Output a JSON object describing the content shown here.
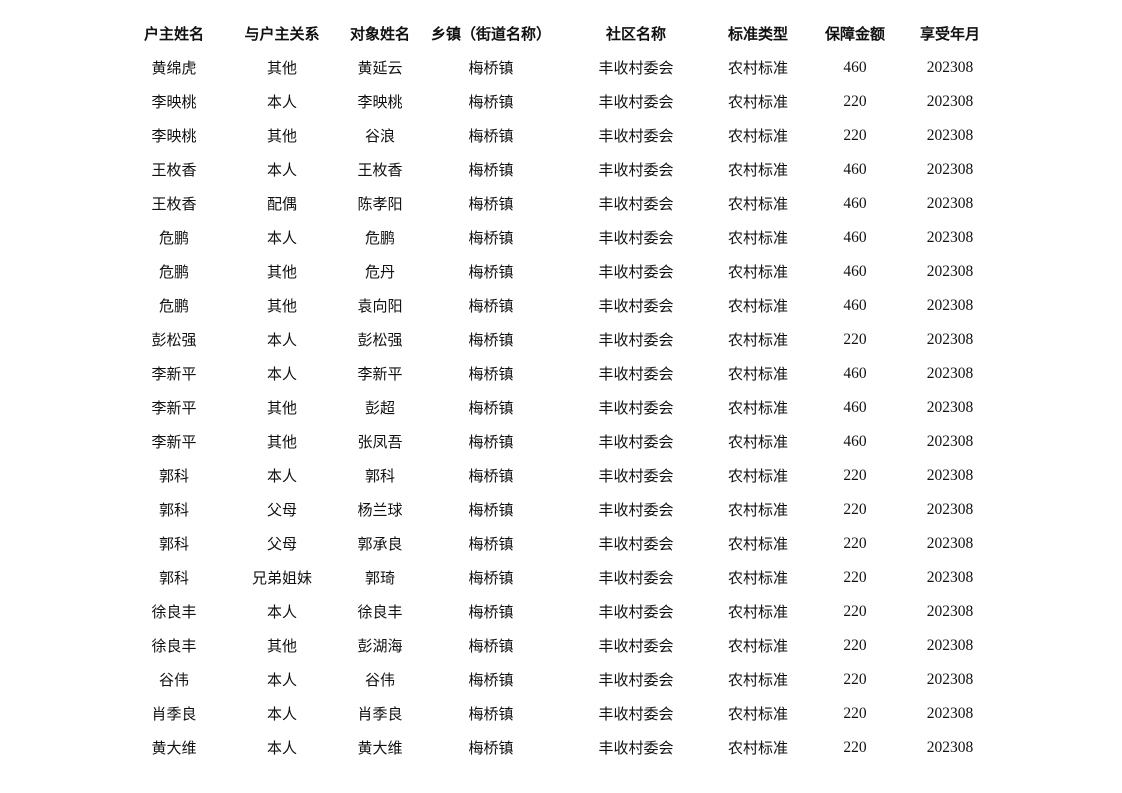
{
  "table": {
    "headers": [
      "户主姓名",
      "与户主关系",
      "对象姓名",
      "乡镇（街道名称）",
      "社区名称",
      "标准类型",
      "保障金额",
      "享受年月"
    ],
    "rows": [
      [
        "黄绵虎",
        "其他",
        "黄延云",
        "梅桥镇",
        "丰收村委会",
        "农村标准",
        "460",
        "202308"
      ],
      [
        "李映桃",
        "本人",
        "李映桃",
        "梅桥镇",
        "丰收村委会",
        "农村标准",
        "220",
        "202308"
      ],
      [
        "李映桃",
        "其他",
        "谷浪",
        "梅桥镇",
        "丰收村委会",
        "农村标准",
        "220",
        "202308"
      ],
      [
        "王枚香",
        "本人",
        "王枚香",
        "梅桥镇",
        "丰收村委会",
        "农村标准",
        "460",
        "202308"
      ],
      [
        "王枚香",
        "配偶",
        "陈孝阳",
        "梅桥镇",
        "丰收村委会",
        "农村标准",
        "460",
        "202308"
      ],
      [
        "危鹏",
        "本人",
        "危鹏",
        "梅桥镇",
        "丰收村委会",
        "农村标准",
        "460",
        "202308"
      ],
      [
        "危鹏",
        "其他",
        "危丹",
        "梅桥镇",
        "丰收村委会",
        "农村标准",
        "460",
        "202308"
      ],
      [
        "危鹏",
        "其他",
        "袁向阳",
        "梅桥镇",
        "丰收村委会",
        "农村标准",
        "460",
        "202308"
      ],
      [
        "彭松强",
        "本人",
        "彭松强",
        "梅桥镇",
        "丰收村委会",
        "农村标准",
        "220",
        "202308"
      ],
      [
        "李新平",
        "本人",
        "李新平",
        "梅桥镇",
        "丰收村委会",
        "农村标准",
        "460",
        "202308"
      ],
      [
        "李新平",
        "其他",
        "彭超",
        "梅桥镇",
        "丰收村委会",
        "农村标准",
        "460",
        "202308"
      ],
      [
        "李新平",
        "其他",
        "张凤吾",
        "梅桥镇",
        "丰收村委会",
        "农村标准",
        "460",
        "202308"
      ],
      [
        "郭科",
        "本人",
        "郭科",
        "梅桥镇",
        "丰收村委会",
        "农村标准",
        "220",
        "202308"
      ],
      [
        "郭科",
        "父母",
        "杨兰球",
        "梅桥镇",
        "丰收村委会",
        "农村标准",
        "220",
        "202308"
      ],
      [
        "郭科",
        "父母",
        "郭承良",
        "梅桥镇",
        "丰收村委会",
        "农村标准",
        "220",
        "202308"
      ],
      [
        "郭科",
        "兄弟姐妹",
        "郭琦",
        "梅桥镇",
        "丰收村委会",
        "农村标准",
        "220",
        "202308"
      ],
      [
        "徐良丰",
        "本人",
        "徐良丰",
        "梅桥镇",
        "丰收村委会",
        "农村标准",
        "220",
        "202308"
      ],
      [
        "徐良丰",
        "其他",
        "彭湖海",
        "梅桥镇",
        "丰收村委会",
        "农村标准",
        "220",
        "202308"
      ],
      [
        "谷伟",
        "本人",
        "谷伟",
        "梅桥镇",
        "丰收村委会",
        "农村标准",
        "220",
        "202308"
      ],
      [
        "肖季良",
        "本人",
        "肖季良",
        "梅桥镇",
        "丰收村委会",
        "农村标准",
        "220",
        "202308"
      ],
      [
        "黄大维",
        "本人",
        "黄大维",
        "梅桥镇",
        "丰收村委会",
        "农村标准",
        "220",
        "202308"
      ]
    ]
  }
}
